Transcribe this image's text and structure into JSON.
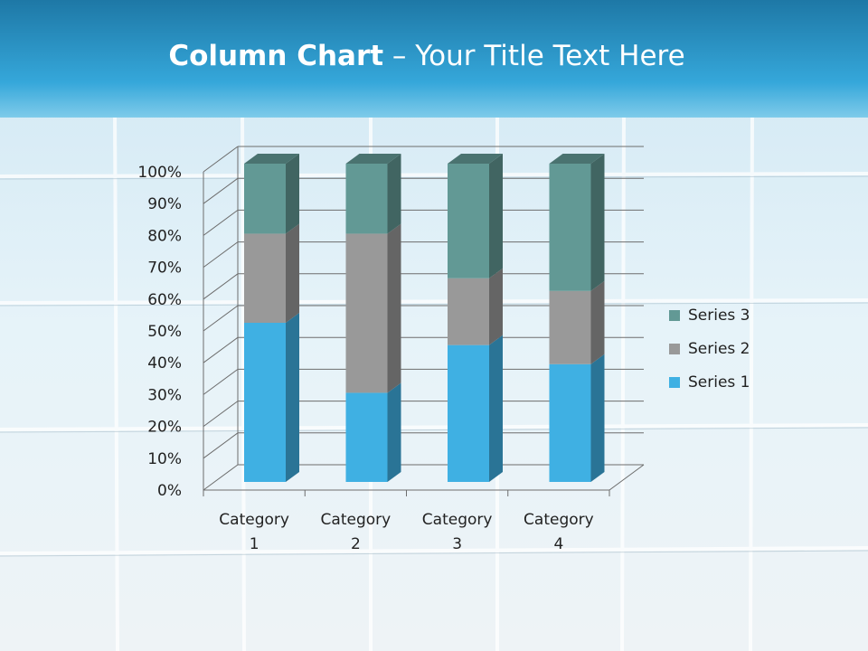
{
  "slide": {
    "title_bold": "Column Chart",
    "title_dash": " – ",
    "title_rest": "Your Title Text Here"
  },
  "colors": {
    "header_top": "#1e78a6",
    "header_bottom": "#35a7da",
    "series_1": "#3fb0e3",
    "series_2": "#999999",
    "series_3": "#629995"
  },
  "chart_data": {
    "type": "bar",
    "stacked": true,
    "percent_stacked": true,
    "three_d": true,
    "categories": [
      "Category 1",
      "Category 2",
      "Category 3",
      "Category 4"
    ],
    "category_lines": [
      [
        "Category",
        "1"
      ],
      [
        "Category",
        "2"
      ],
      [
        "Category",
        "3"
      ],
      [
        "Category",
        "4"
      ]
    ],
    "series": [
      {
        "name": "Series 1",
        "values": [
          50,
          28,
          43,
          37
        ]
      },
      {
        "name": "Series 2",
        "values": [
          28,
          50,
          21,
          23
        ]
      },
      {
        "name": "Series 3",
        "values": [
          22,
          22,
          36,
          40
        ]
      }
    ],
    "ylim": [
      0,
      100
    ],
    "yticks": [
      "0%",
      "10%",
      "20%",
      "30%",
      "40%",
      "50%",
      "60%",
      "70%",
      "80%",
      "90%",
      "100%"
    ],
    "grid": true,
    "legend_position": "right",
    "legend_order": [
      "Series 3",
      "Series 2",
      "Series 1"
    ]
  }
}
